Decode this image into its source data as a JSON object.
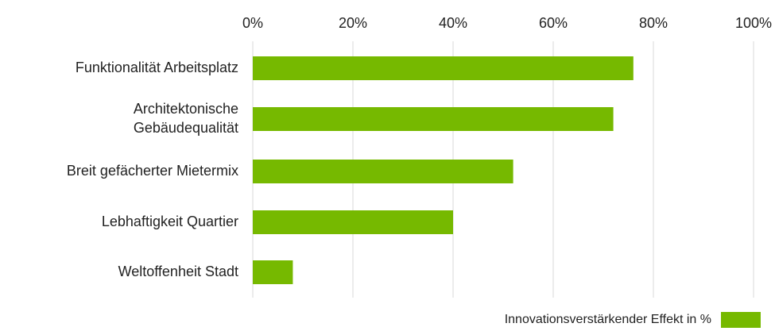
{
  "chart_data": {
    "type": "bar",
    "orientation": "horizontal",
    "categories": [
      "Funktionalität Arbeitsplatz",
      "Architektonische\nGebäudequalität",
      "Breit gefächerter Mietermix",
      "Lebhaftigkeit Quartier",
      "Weltoffenheit Stadt"
    ],
    "series": [
      {
        "name": "Innovationsverstärkender Effekt in %",
        "color": "#76b900",
        "values": [
          76,
          72,
          52,
          40,
          8
        ]
      }
    ],
    "xlim": [
      0,
      100
    ],
    "xticks": [
      {
        "value": 0,
        "label": "0%"
      },
      {
        "value": 20,
        "label": "20%"
      },
      {
        "value": 40,
        "label": "40%"
      },
      {
        "value": 60,
        "label": "60%"
      },
      {
        "value": 80,
        "label": "80%"
      },
      {
        "value": 100,
        "label": "100%"
      }
    ],
    "grid": true,
    "legend": "bottom-right"
  }
}
